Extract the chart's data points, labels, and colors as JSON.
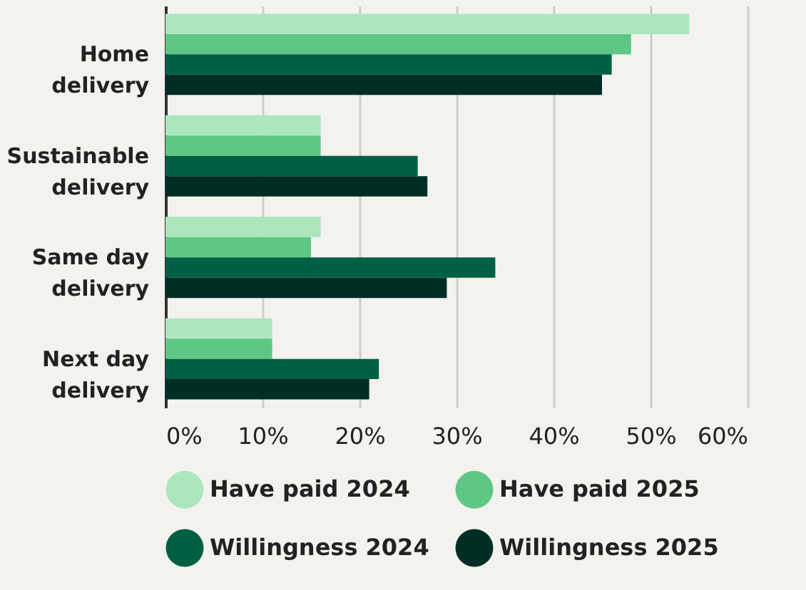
{
  "chart_data": {
    "type": "bar",
    "orientation": "horizontal",
    "categories": [
      "Home delivery",
      "Sustainable delivery",
      "Same day delivery",
      "Next day delivery"
    ],
    "series": [
      {
        "name": "Have paid 2024",
        "color": "#ade6bd",
        "values": [
          54,
          16,
          16,
          11
        ]
      },
      {
        "name": "Have paid 2025",
        "color": "#5fc785",
        "values": [
          48,
          16,
          15,
          11
        ]
      },
      {
        "name": "Willingness 2024",
        "color": "#006044",
        "values": [
          46,
          26,
          34,
          22
        ]
      },
      {
        "name": "Willingness 2025",
        "color": "#002e25",
        "values": [
          45,
          27,
          29,
          21
        ]
      }
    ],
    "xlim": [
      0,
      60
    ],
    "xticks": [
      {
        "value": 0,
        "label": "0%"
      },
      {
        "value": 10,
        "label": "10%"
      },
      {
        "value": 20,
        "label": "20%"
      },
      {
        "value": 30,
        "label": "30%"
      },
      {
        "value": 40,
        "label": "40%"
      },
      {
        "value": 50,
        "label": "50%"
      },
      {
        "value": 60,
        "label": "60%"
      }
    ],
    "grid": "x",
    "legend": "bottom"
  }
}
